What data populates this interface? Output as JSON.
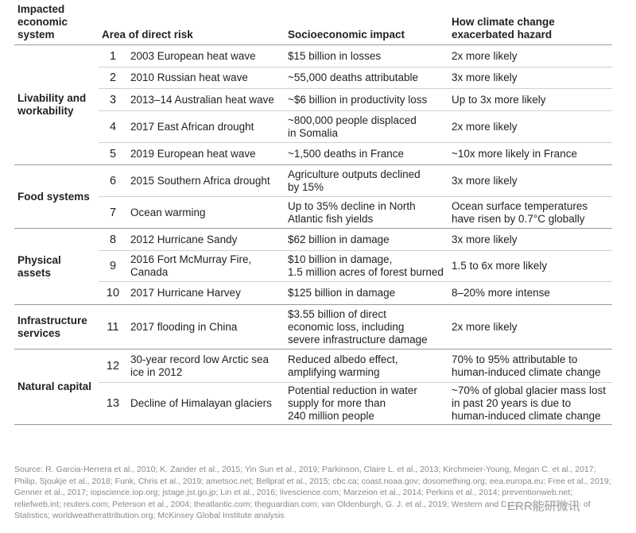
{
  "table": {
    "headers": [
      "Impacted\neconomic\nsystem",
      "Area of direct risk",
      "Socioeconomic impact",
      "How climate change\nexacerbated hazard"
    ],
    "groups": [
      {
        "system": "Livability and\nworkability",
        "rows": [
          {
            "number": 1,
            "area": "2003 European heat wave",
            "impact": "$15 billion in losses",
            "hazard": "2x more likely"
          },
          {
            "number": 2,
            "area": "2010 Russian heat wave",
            "impact": "~55,000 deaths attributable",
            "hazard": "3x more likely"
          },
          {
            "number": 3,
            "area": "2013–14 Australian heat wave",
            "impact": "~$6 billion in productivity loss",
            "hazard": "Up to 3x more likely"
          },
          {
            "number": 4,
            "area": "2017 East African drought",
            "impact": "~800,000 people displaced\nin Somalia",
            "hazard": "2x more likely"
          },
          {
            "number": 5,
            "area": "2019 European heat wave",
            "impact": "~1,500 deaths in France",
            "hazard": "~10x more likely in France"
          }
        ]
      },
      {
        "system": "Food systems",
        "rows": [
          {
            "number": 6,
            "area": "2015 Southern Africa drought",
            "impact": "Agriculture outputs declined\nby 15%",
            "hazard": "3x more likely"
          },
          {
            "number": 7,
            "area": "Ocean warming",
            "impact": "Up to 35% decline in North\nAtlantic fish yields",
            "hazard": "Ocean surface temperatures\nhave risen by 0.7°C globally"
          }
        ]
      },
      {
        "system": "Physical\nassets",
        "rows": [
          {
            "number": 8,
            "area": "2012 Hurricane Sandy",
            "impact": "$62 billion in damage",
            "hazard": "3x more likely"
          },
          {
            "number": 9,
            "area": "2016 Fort McMurray Fire,\nCanada",
            "impact": "$10 billion in damage,\n1.5 million acres of forest burned",
            "hazard": "1.5 to 6x more likely"
          },
          {
            "number": 10,
            "area": "2017 Hurricane Harvey",
            "impact": "$125 billion in damage",
            "hazard": "8–20% more intense"
          }
        ]
      },
      {
        "system": "Infrastructure\nservices",
        "rows": [
          {
            "number": 11,
            "area": "2017 flooding in China",
            "impact": "$3.55 billion of direct\neconomic loss, including\nsevere infrastructure damage",
            "hazard": "2x more likely"
          }
        ]
      },
      {
        "system": "Natural capital",
        "rows": [
          {
            "number": 12,
            "area": "30-year record low Arctic sea\nice in 2012",
            "impact": "Reduced albedo effect,\namplifying warming",
            "hazard": "70% to 95% attributable to\nhuman-induced climate change"
          },
          {
            "number": 13,
            "area": "Decline of Himalayan glaciers",
            "impact": "Potential reduction in water\nsupply for more than\n240 million people",
            "hazard": "~70% of global glacier mass lost\nin past 20 years is due to\nhuman-induced climate change"
          }
        ]
      }
    ]
  },
  "source": "Source: R. Garcia-Herrera et al., 2010; K. Zander et al., 2015; Yin Sun et al., 2019; Parkinson, Claire L. et al., 2013; Kirchmeier-Young, Megan C. et al., 2017; Philip, Sjoukje et al., 2018; Funk, Chris et al., 2019; ametsoc.net; Bellprat et al., 2015; cbc.ca; coast.noaa.gov; dosomething.org; eea.europa.eu; Free et al., 2019; Genner et al., 2017; iopscience.iop.org; jstage.jst.go.jp; Lin et al., 2016; livescience.com; Marzeion et al., 2014; Perkins et al., 2014; preventionweb.net; reliefweb.int; reuters.com; Peterson et al., 2004; theatlantic.com; theguardian.com; van Oldenburgh, G. J. et al., 2019; Western and Dutch Central Bureau of Statistics; worldweatherattribution.org; McKinsey Global Institute analysis",
  "watermark": "ERR能研微讯"
}
